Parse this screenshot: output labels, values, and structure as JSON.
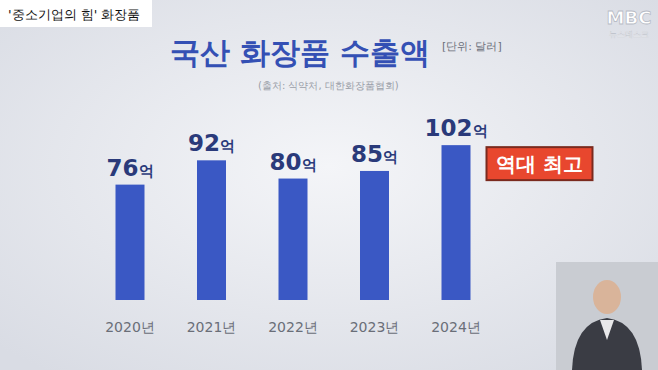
{
  "header": {
    "caption": "'중소기업의 힘' 화장품",
    "logo": "MBC",
    "logo_sub": "뉴스데스크"
  },
  "chart_data": {
    "type": "bar",
    "title": "국산 화장품 수출액",
    "subtitle": "[단위: 달러]",
    "source": "(출처: 식약처, 대한화장품협회)",
    "categories": [
      "2020년",
      "2021년",
      "2022년",
      "2023년",
      "2024년"
    ],
    "values": [
      76,
      92,
      80,
      85,
      102
    ],
    "value_labels": [
      "76억",
      "92억",
      "80억",
      "85억",
      "102억"
    ],
    "color": "#3a58c4",
    "ylim": [
      0,
      110
    ],
    "grid": false,
    "data_labels": true,
    "tick_labels": "x",
    "annotations": [
      {
        "text": "역대 최고",
        "category": "2024년"
      }
    ]
  }
}
